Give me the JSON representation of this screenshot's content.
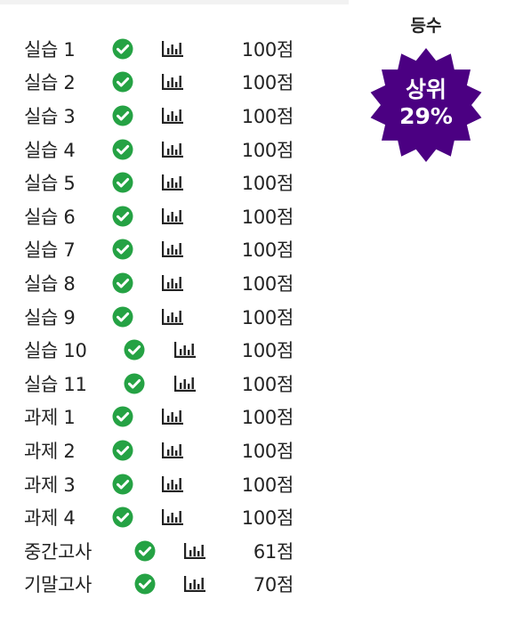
{
  "colors": {
    "check": "#25a244",
    "badge": "#4b0082",
    "text": "#222222"
  },
  "rank": {
    "title": "등수",
    "badge_line1": "상위",
    "badge_line2": "29%"
  },
  "rows": [
    {
      "label": "실습 1",
      "score": "100점",
      "status_icon": "check-circle-icon",
      "chart_icon": "bar-chart-icon"
    },
    {
      "label": "실습 2",
      "score": "100점",
      "status_icon": "check-circle-icon",
      "chart_icon": "bar-chart-icon"
    },
    {
      "label": "실습 3",
      "score": "100점",
      "status_icon": "check-circle-icon",
      "chart_icon": "bar-chart-icon"
    },
    {
      "label": "실습 4",
      "score": "100점",
      "status_icon": "check-circle-icon",
      "chart_icon": "bar-chart-icon"
    },
    {
      "label": "실습 5",
      "score": "100점",
      "status_icon": "check-circle-icon",
      "chart_icon": "bar-chart-icon"
    },
    {
      "label": "실습 6",
      "score": "100점",
      "status_icon": "check-circle-icon",
      "chart_icon": "bar-chart-icon"
    },
    {
      "label": "실습 7",
      "score": "100점",
      "status_icon": "check-circle-icon",
      "chart_icon": "bar-chart-icon"
    },
    {
      "label": "실습 8",
      "score": "100점",
      "status_icon": "check-circle-icon",
      "chart_icon": "bar-chart-icon"
    },
    {
      "label": "실습 9",
      "score": "100점",
      "status_icon": "check-circle-icon",
      "chart_icon": "bar-chart-icon"
    },
    {
      "label": "실습 10",
      "score": "100점",
      "status_icon": "check-circle-icon",
      "chart_icon": "bar-chart-icon"
    },
    {
      "label": "실습 11",
      "score": "100점",
      "status_icon": "check-circle-icon",
      "chart_icon": "bar-chart-icon"
    },
    {
      "label": "과제 1",
      "score": "100점",
      "status_icon": "check-circle-icon",
      "chart_icon": "bar-chart-icon"
    },
    {
      "label": "과제 2",
      "score": "100점",
      "status_icon": "check-circle-icon",
      "chart_icon": "bar-chart-icon"
    },
    {
      "label": "과제 3",
      "score": "100점",
      "status_icon": "check-circle-icon",
      "chart_icon": "bar-chart-icon"
    },
    {
      "label": "과제 4",
      "score": "100점",
      "status_icon": "check-circle-icon",
      "chart_icon": "bar-chart-icon"
    },
    {
      "label": "중간고사",
      "score": "61점",
      "status_icon": "check-circle-icon",
      "chart_icon": "bar-chart-icon"
    },
    {
      "label": "기말고사",
      "score": "70점",
      "status_icon": "check-circle-icon",
      "chart_icon": "bar-chart-icon"
    }
  ]
}
